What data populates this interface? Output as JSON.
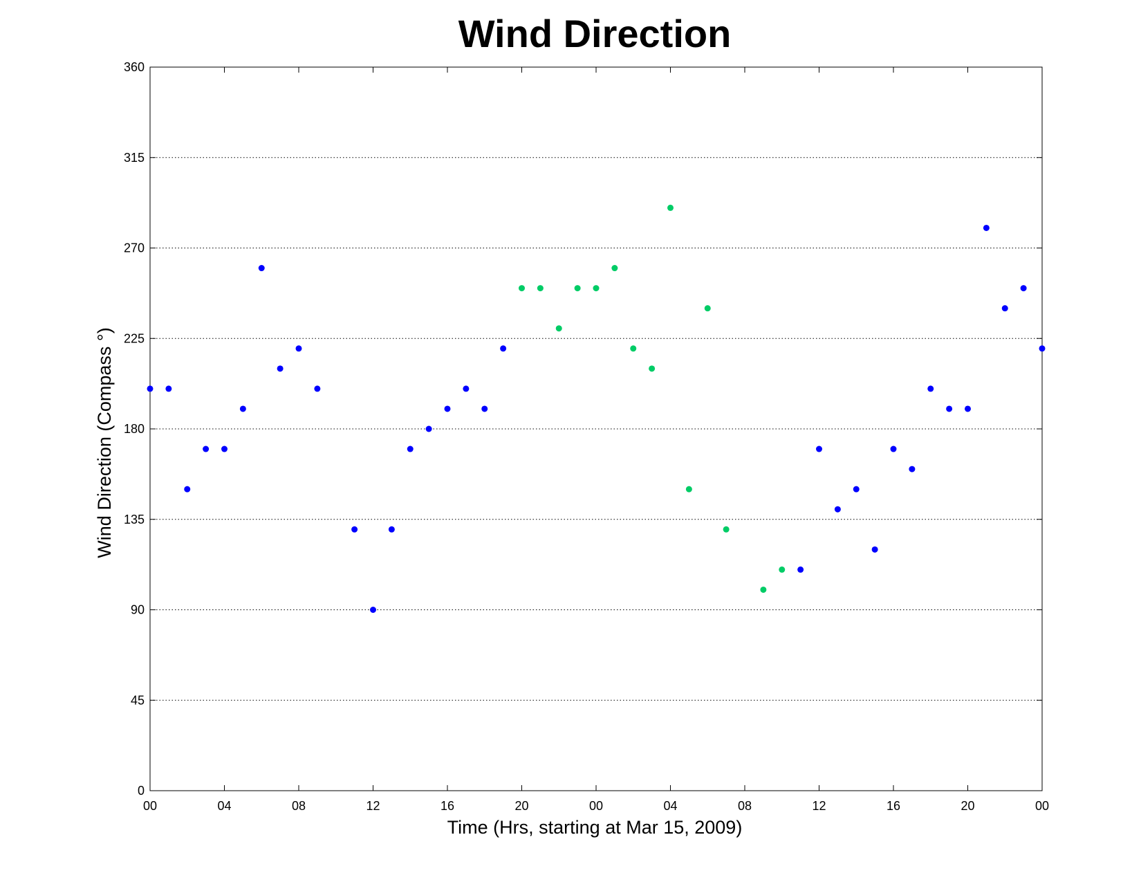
{
  "chart_data": {
    "type": "scatter",
    "title": "Wind Direction",
    "xlabel": "Time (Hrs, starting at Mar 15, 2009)",
    "ylabel": "Wind Direction (Compass  °)",
    "ylim": [
      0,
      360
    ],
    "xlim": [
      0,
      48
    ],
    "x_ticks": [
      0,
      4,
      8,
      12,
      16,
      20,
      24,
      28,
      32,
      36,
      40,
      44,
      48
    ],
    "x_tick_labels": [
      "00",
      "04",
      "08",
      "12",
      "16",
      "20",
      "00",
      "04",
      "08",
      "12",
      "16",
      "20",
      "00"
    ],
    "y_ticks": [
      0,
      45,
      90,
      135,
      180,
      225,
      270,
      315,
      360
    ],
    "y_tick_labels": [
      "0",
      "45",
      "90",
      "135",
      "180",
      "225",
      "270",
      "315",
      "360"
    ],
    "grid": "horizontal dotted",
    "series": [
      {
        "color": "#0000ff",
        "x": [
          0,
          1,
          2,
          3,
          4,
          5,
          6,
          7,
          8,
          9,
          11,
          12,
          13,
          14,
          15,
          16,
          17,
          18,
          19,
          35,
          36,
          37,
          38,
          39,
          40,
          41,
          42,
          43,
          44,
          45,
          46,
          47,
          48
        ],
        "y": [
          200,
          200,
          150,
          170,
          170,
          190,
          260,
          210,
          220,
          200,
          130,
          90,
          130,
          170,
          180,
          190,
          200,
          190,
          220,
          110,
          170,
          140,
          150,
          120,
          170,
          160,
          200,
          190,
          190,
          280,
          240,
          250,
          220
        ]
      },
      {
        "color": "#00cc66",
        "x": [
          20,
          21,
          22,
          23,
          24,
          25,
          26,
          27,
          28,
          29,
          30,
          31,
          33,
          34
        ],
        "y": [
          250,
          250,
          230,
          250,
          250,
          260,
          220,
          210,
          290,
          150,
          240,
          130,
          100,
          110
        ]
      }
    ]
  }
}
